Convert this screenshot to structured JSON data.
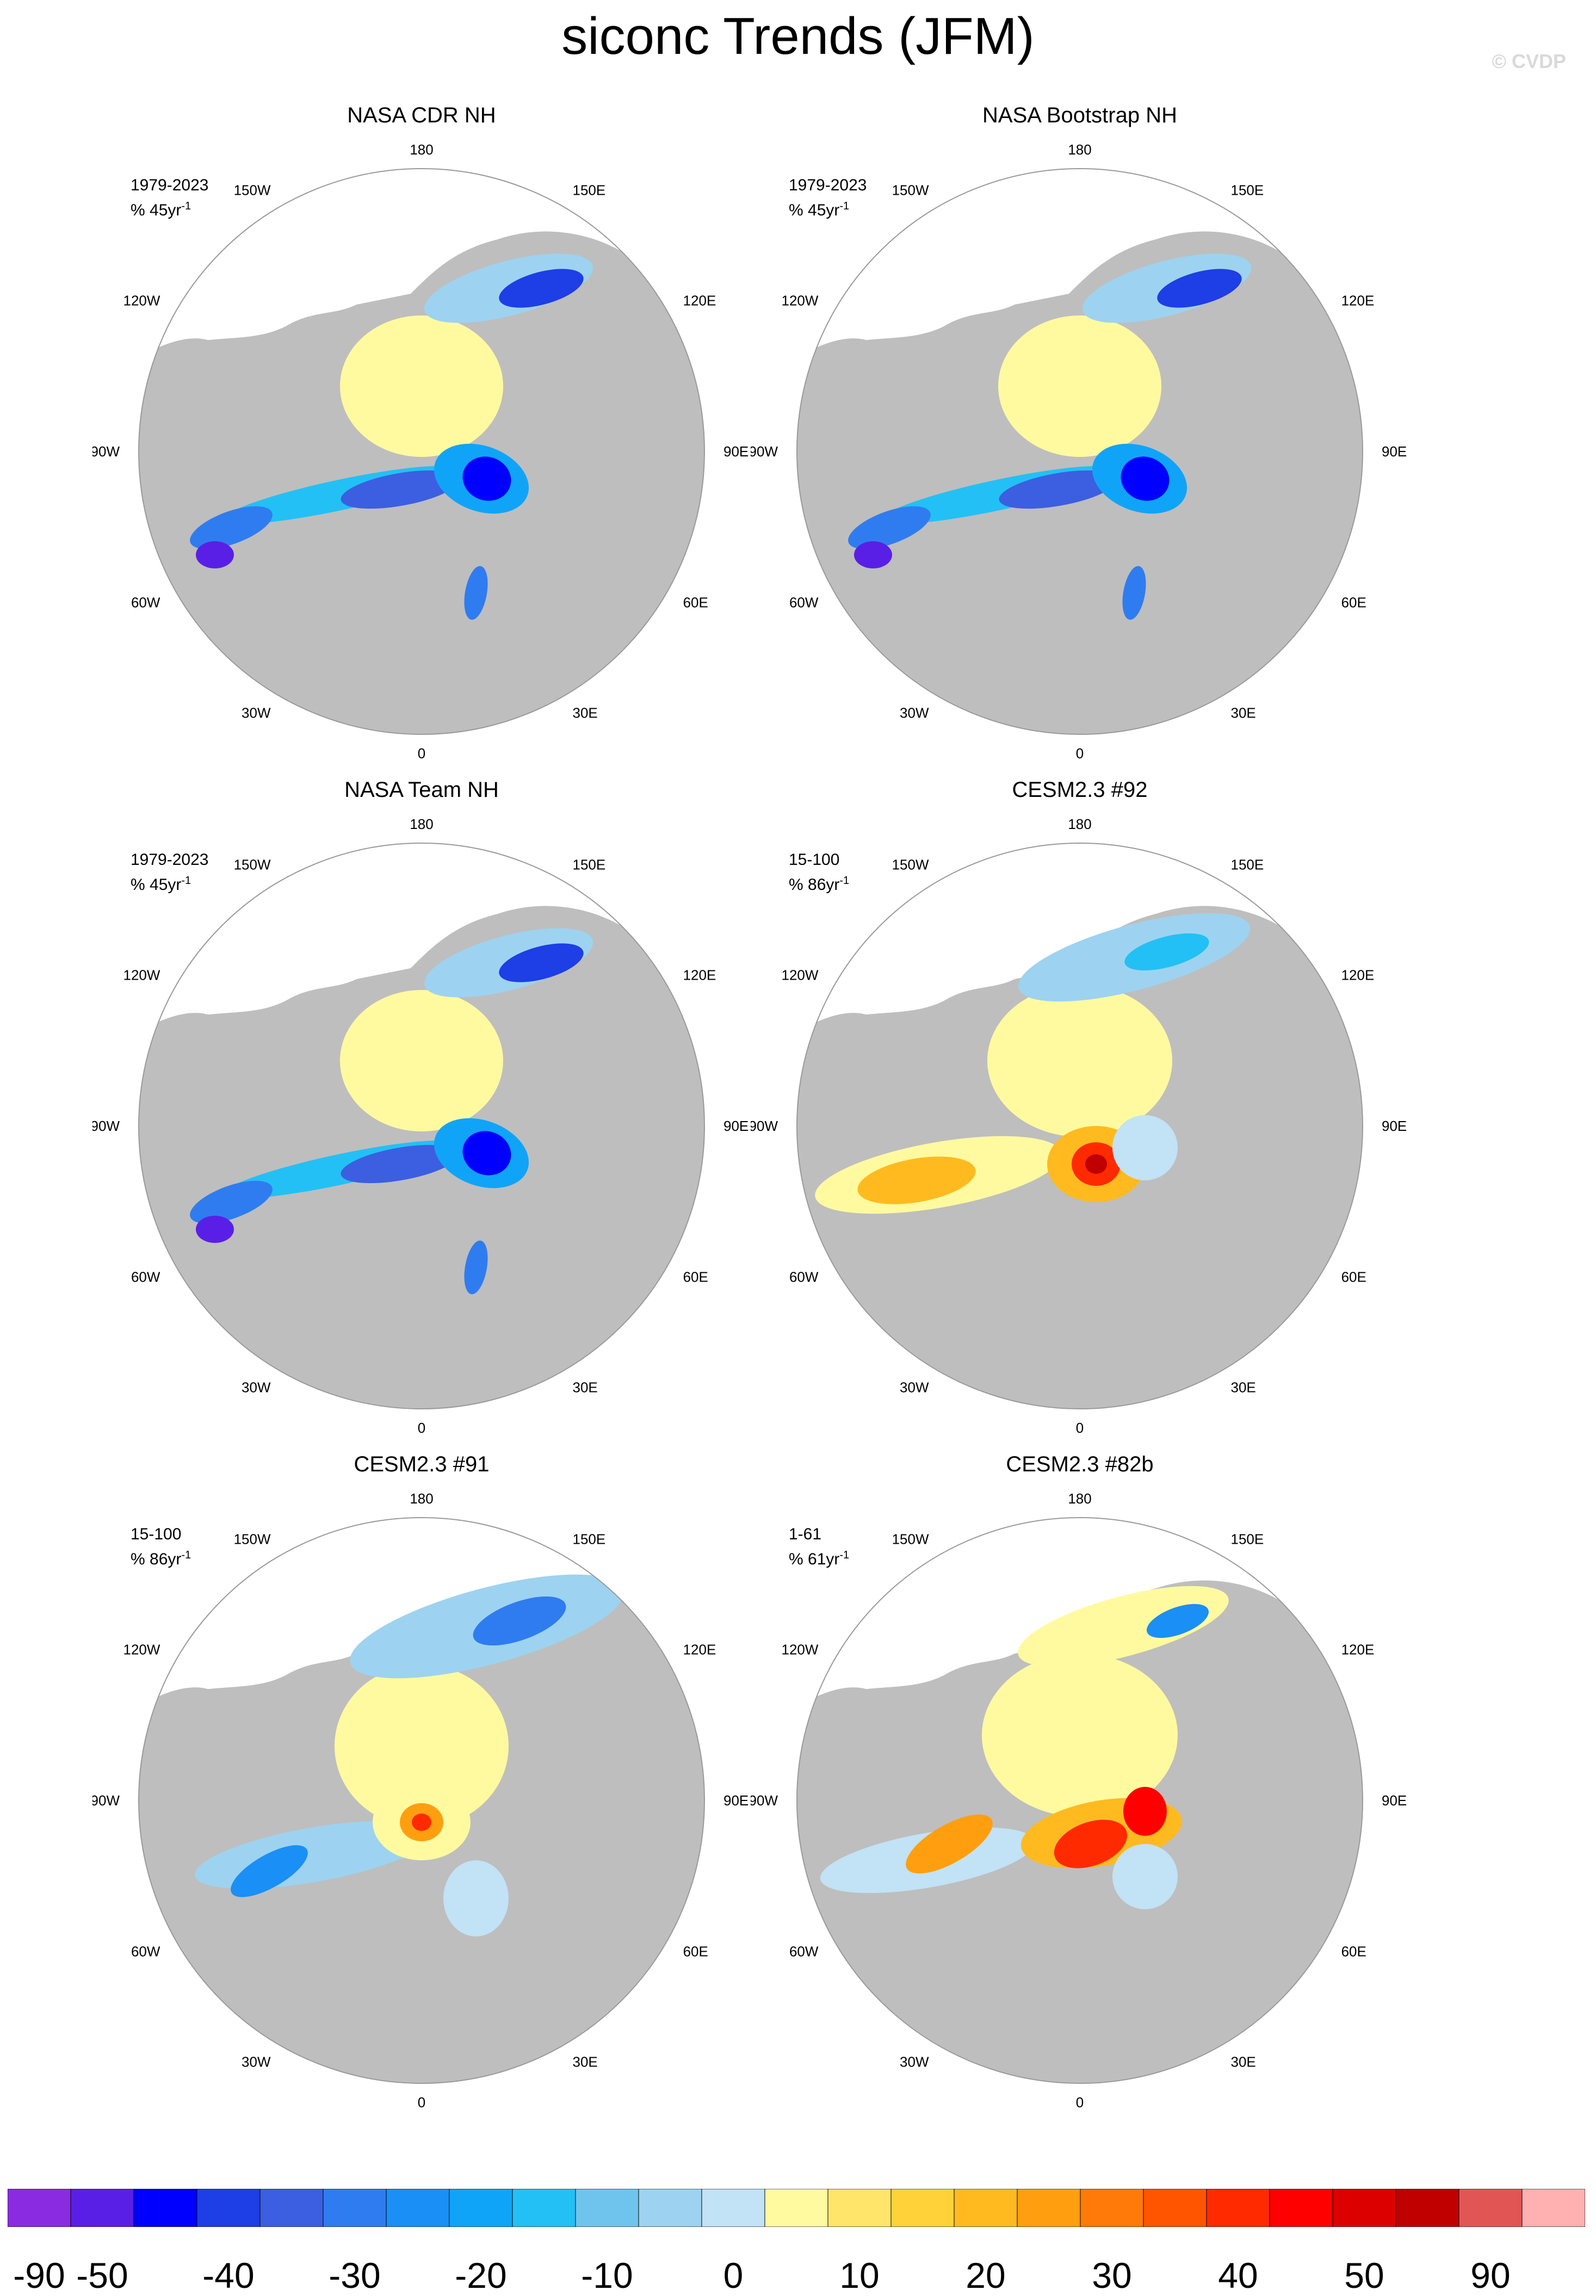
{
  "title": "siconc Trends (JFM)",
  "watermark": "© CVDP",
  "longitude_labels": {
    "top": "180",
    "bottom": "0",
    "upper_left": "150W",
    "upper_right": "150E",
    "left_upper": "120W",
    "right_upper": "120E",
    "left": "90W",
    "right": "90E",
    "left_lower": "60W",
    "right_lower": "60E",
    "lower_left": "30W",
    "lower_right": "30E"
  },
  "panels": [
    {
      "title": "NASA CDR NH",
      "period": "1979-2023",
      "units": "% 45yr",
      "pattern": "obs"
    },
    {
      "title": "NASA Bootstrap NH",
      "period": "1979-2023",
      "units": "% 45yr",
      "pattern": "obs"
    },
    {
      "title": "NASA Team NH",
      "period": "1979-2023",
      "units": "% 45yr",
      "pattern": "obs"
    },
    {
      "title": "CESM2.3 #92",
      "period": "15-100",
      "units": "% 86yr",
      "pattern": "model_warm"
    },
    {
      "title": "CESM2.3 #91",
      "period": "15-100",
      "units": "% 86yr",
      "pattern": "model_mixed"
    },
    {
      "title": "CESM2.3 #82b",
      "period": "1-61",
      "units": "% 61yr",
      "pattern": "model_warm2"
    }
  ],
  "units_superscript": "-1",
  "colorbar": {
    "colors": [
      "#8a2be2",
      "#5a1fe6",
      "#0000ff",
      "#1e3ee6",
      "#3b5fe0",
      "#2f7cf0",
      "#1a8ff5",
      "#10a4f8",
      "#23c0f5",
      "#6fc4ee",
      "#9dd3f0",
      "#c2e2f5",
      "#fffaa0",
      "#ffe56a",
      "#ffd23a",
      "#ffba20",
      "#ff9f10",
      "#ff7a08",
      "#ff5500",
      "#ff2a00",
      "#ff0000",
      "#dc0000",
      "#c00000",
      "#e25555",
      "#ffb0b0"
    ],
    "labels": [
      "-90",
      "-50",
      "-40",
      "-30",
      "-20",
      "-10",
      "0",
      "10",
      "20",
      "30",
      "40",
      "50",
      "90"
    ]
  },
  "colors": {
    "land": "#bebebe",
    "ocean": "#ffffff",
    "increase_weak": "#fffaa0",
    "decrease_weak": "#c2e2f5"
  }
}
